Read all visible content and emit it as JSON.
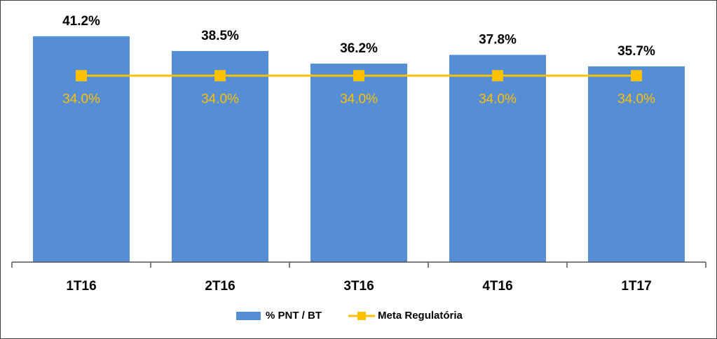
{
  "chart_data": {
    "type": "combo",
    "categories": [
      "1T16",
      "2T16",
      "3T16",
      "4T16",
      "1T17"
    ],
    "series": [
      {
        "name": "% PNT / BT",
        "type": "bar",
        "color": "#558ed5",
        "values": [
          41.2,
          38.5,
          36.2,
          37.8,
          35.7
        ],
        "value_labels": [
          "41.2%",
          "38.5%",
          "36.2%",
          "37.8%",
          "35.7%"
        ]
      },
      {
        "name": "Meta Regulatória",
        "type": "line",
        "color": "#ffc000",
        "values": [
          34.0,
          34.0,
          34.0,
          34.0,
          34.0
        ],
        "value_labels": [
          "34.0%",
          "34.0%",
          "34.0%",
          "34.0%",
          "34.0%"
        ]
      }
    ],
    "ylim": [
      0,
      45
    ],
    "legend": "bottom"
  }
}
